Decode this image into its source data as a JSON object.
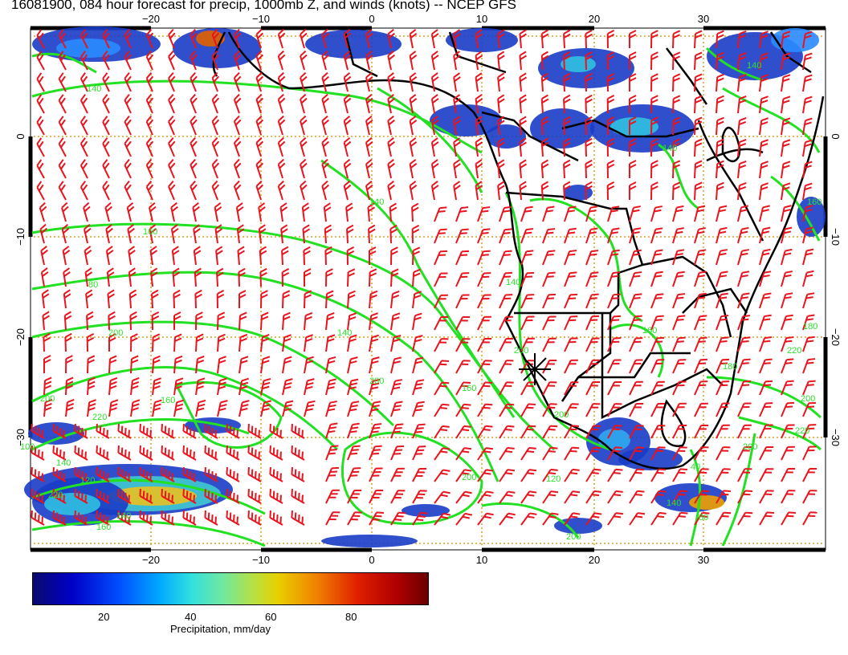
{
  "title": "16081900, 084 hour forecast for precip, 1000mb Z, and winds (knots) -- NCEP GFS",
  "axes": {
    "x_ticks": [
      "−20",
      "−10",
      "0",
      "10",
      "20",
      "30"
    ],
    "y_ticks": [
      "0",
      "−10",
      "−20",
      "−30"
    ]
  },
  "contour_labels": [
    "140",
    "160",
    "80",
    "200",
    "140",
    "200",
    "200",
    "160",
    "220",
    "140",
    "200",
    "120",
    "220",
    "140",
    "160",
    "160",
    "200",
    "200",
    "220",
    "160",
    "180",
    "200",
    "140",
    "140",
    "160",
    "40",
    "140",
    "80",
    "120",
    "140",
    "140",
    "100",
    "180",
    "200",
    "220",
    "200"
  ],
  "colorbar": {
    "ticks": [
      "20",
      "40",
      "60",
      "80"
    ],
    "label": "Precipitation, mm/day"
  },
  "colors": {
    "contour": "#22e022",
    "barb": "#e8141e",
    "coast": "#000000",
    "grid": "#d9a020"
  },
  "marker": "surface-low-cross"
}
